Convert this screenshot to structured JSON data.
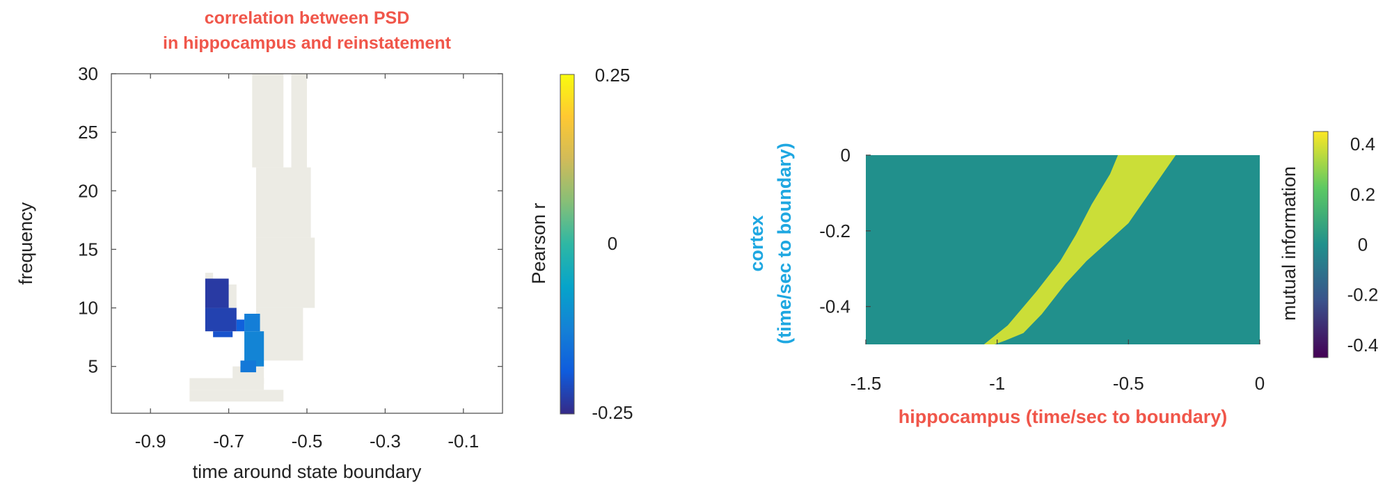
{
  "chart_data": [
    {
      "type": "heatmap",
      "title": [
        "correlation between PSD",
        "in hippocampus and reinstatement"
      ],
      "xlabel": "time around state boundary",
      "ylabel": "frequency",
      "xlim": [
        -1.0,
        0.0
      ],
      "ylim": [
        1,
        30
      ],
      "x_ticks": [
        -0.9,
        -0.7,
        -0.5,
        -0.3,
        -0.1
      ],
      "x_tick_labels": [
        "-0.9",
        "-0.7",
        "-0.5",
        "-0.3",
        "-0.1"
      ],
      "y_ticks": [
        5,
        10,
        15,
        20,
        25,
        30
      ],
      "y_tick_labels": [
        "5",
        "10",
        "15",
        "20",
        "25",
        "30"
      ],
      "colorbar": {
        "label": "Pearson r",
        "range": [
          -0.25,
          0.25
        ],
        "tick_labels": [
          "-0.25",
          "0",
          "0.25"
        ]
      },
      "regions": [
        {
          "x": [
            -0.64,
            -0.56
          ],
          "y": [
            22,
            30
          ],
          "value": 0
        },
        {
          "x": [
            -0.54,
            -0.5
          ],
          "y": [
            16,
            30
          ],
          "value": 0
        },
        {
          "x": [
            -0.63,
            -0.49
          ],
          "y": [
            16,
            22
          ],
          "value": 0
        },
        {
          "x": [
            -0.63,
            -0.48
          ],
          "y": [
            10,
            16
          ],
          "value": 0
        },
        {
          "x": [
            -0.63,
            -0.51
          ],
          "y": [
            5.5,
            10
          ],
          "value": 0
        },
        {
          "x": [
            -0.76,
            -0.74
          ],
          "y": [
            12.5,
            13
          ],
          "value": 0
        },
        {
          "x": [
            -0.7,
            -0.68
          ],
          "y": [
            10,
            12
          ],
          "value": 0
        },
        {
          "x": [
            -0.69,
            -0.61
          ],
          "y": [
            3.5,
            5
          ],
          "value": 0
        },
        {
          "x": [
            -0.8,
            -0.61
          ],
          "y": [
            3,
            4
          ],
          "value": 0
        },
        {
          "x": [
            -0.8,
            -0.56
          ],
          "y": [
            2,
            3
          ],
          "value": 0
        },
        {
          "x": [
            -0.76,
            -0.7
          ],
          "y": [
            10,
            12.5
          ],
          "value": -0.23
        },
        {
          "x": [
            -0.76,
            -0.68
          ],
          "y": [
            8,
            10
          ],
          "value": -0.22
        },
        {
          "x": [
            -0.74,
            -0.69
          ],
          "y": [
            7.5,
            8
          ],
          "value": -0.2
        },
        {
          "x": [
            -0.68,
            -0.66
          ],
          "y": [
            8,
            9
          ],
          "value": -0.18
        },
        {
          "x": [
            -0.66,
            -0.62
          ],
          "y": [
            8,
            9.5
          ],
          "value": -0.13
        },
        {
          "x": [
            -0.66,
            -0.61
          ],
          "y": [
            5,
            8
          ],
          "value": -0.12
        },
        {
          "x": [
            -0.67,
            -0.63
          ],
          "y": [
            4.5,
            5.5
          ],
          "value": -0.14
        }
      ]
    },
    {
      "type": "heatmap",
      "xlabel": "hippocampus (time/sec to boundary)",
      "ylabel": [
        "cortex",
        "(time/sec to boundary)"
      ],
      "xlim": [
        -1.5,
        0
      ],
      "ylim": [
        -0.5,
        0
      ],
      "x_ticks": [
        -1.5,
        -1,
        -0.5,
        0
      ],
      "x_tick_labels": [
        "-1.5",
        "-1",
        "-0.5",
        "0"
      ],
      "y_ticks": [
        0,
        -0.2,
        -0.4
      ],
      "y_tick_labels": [
        "0",
        "-0.2",
        "-0.4"
      ],
      "background_value": 0,
      "colorbar": {
        "label": "mutual information",
        "range": [
          -0.45,
          0.45
        ],
        "tick_labels": [
          "0.4",
          "0.2",
          "0",
          "-0.2",
          "-0.4"
        ]
      },
      "band": {
        "value": 0.38,
        "polygon": [
          [
            -1.05,
            -0.5
          ],
          [
            -0.96,
            -0.45
          ],
          [
            -0.85,
            -0.36
          ],
          [
            -0.76,
            -0.28
          ],
          [
            -0.7,
            -0.21
          ],
          [
            -0.64,
            -0.13
          ],
          [
            -0.57,
            -0.05
          ],
          [
            -0.54,
            0.0
          ],
          [
            -0.43,
            0.0
          ],
          [
            -0.36,
            0.0
          ],
          [
            -0.32,
            0.0
          ],
          [
            -0.36,
            -0.04
          ],
          [
            -0.42,
            -0.1
          ],
          [
            -0.5,
            -0.18
          ],
          [
            -0.58,
            -0.23
          ],
          [
            -0.66,
            -0.28
          ],
          [
            -0.74,
            -0.34
          ],
          [
            -0.83,
            -0.42
          ],
          [
            -0.9,
            -0.47
          ],
          [
            -0.97,
            -0.49
          ],
          [
            -1.01,
            -0.5
          ]
        ]
      }
    }
  ]
}
